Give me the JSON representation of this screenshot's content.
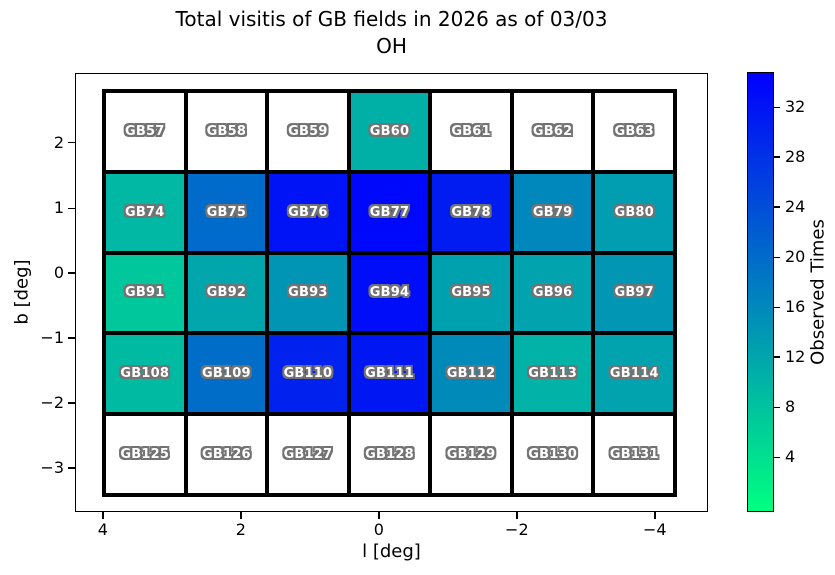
{
  "title": {
    "line1": "Total visitis of GB fields in 2026 as of 03/03",
    "line2": "OH"
  },
  "axes": {
    "xlabel": "l [deg]",
    "ylabel": "b [deg]",
    "x_ticks": [
      {
        "label": "4",
        "pos_pct": 4.4
      },
      {
        "label": "2",
        "pos_pct": 26.2
      },
      {
        "label": "0",
        "pos_pct": 48.0
      },
      {
        "label": "−2",
        "pos_pct": 69.8
      },
      {
        "label": "−4",
        "pos_pct": 91.6
      }
    ],
    "y_ticks": [
      {
        "label": "2",
        "pos_pct": 15.9
      },
      {
        "label": "1",
        "pos_pct": 30.8
      },
      {
        "label": "0",
        "pos_pct": 45.6
      },
      {
        "label": "−1",
        "pos_pct": 60.4
      },
      {
        "label": "−2",
        "pos_pct": 75.2
      },
      {
        "label": "−3",
        "pos_pct": 90.0
      }
    ]
  },
  "colorbar": {
    "label": "Observed Times",
    "top_color": "#0000ff",
    "bottom_color": "#00ff80",
    "ticks": [
      {
        "label": "32",
        "pos_pct": 8.0
      },
      {
        "label": "28",
        "pos_pct": 19.3
      },
      {
        "label": "24",
        "pos_pct": 30.7
      },
      {
        "label": "20",
        "pos_pct": 42.1
      },
      {
        "label": "16",
        "pos_pct": 53.5
      },
      {
        "label": "12",
        "pos_pct": 64.8
      },
      {
        "label": "8",
        "pos_pct": 76.2
      },
      {
        "label": "4",
        "pos_pct": 87.6
      }
    ]
  },
  "colors": {
    "cell_border": "#000000",
    "label_fill": "#ffffff",
    "label_outline": "#737373",
    "no_data_cell": "#ffffff"
  },
  "grid": {
    "rows": [
      {
        "cells": [
          {
            "label": "GB57",
            "value": null,
            "color": "#ffffff"
          },
          {
            "label": "GB58",
            "value": null,
            "color": "#ffffff"
          },
          {
            "label": "GB59",
            "value": null,
            "color": "#ffffff"
          },
          {
            "label": "GB60",
            "value": 11,
            "color": "#00b0a7"
          },
          {
            "label": "GB61",
            "value": null,
            "color": "#ffffff"
          },
          {
            "label": "GB62",
            "value": null,
            "color": "#ffffff"
          },
          {
            "label": "GB63",
            "value": null,
            "color": "#ffffff"
          }
        ]
      },
      {
        "cells": [
          {
            "label": "GB74",
            "value": 10,
            "color": "#00b8a4"
          },
          {
            "label": "GB75",
            "value": 20,
            "color": "#006bca"
          },
          {
            "label": "GB76",
            "value": 32,
            "color": "#0012f6"
          },
          {
            "label": "GB77",
            "value": 34,
            "color": "#0008fb"
          },
          {
            "label": "GB78",
            "value": 31,
            "color": "#001cf1"
          },
          {
            "label": "GB79",
            "value": 16,
            "color": "#0087bc"
          },
          {
            "label": "GB80",
            "value": 14,
            "color": "#009eb0"
          }
        ]
      },
      {
        "cells": [
          {
            "label": "GB91",
            "value": 8,
            "color": "#00c79c"
          },
          {
            "label": "GB92",
            "value": 12,
            "color": "#00a6ac"
          },
          {
            "label": "GB93",
            "value": 15,
            "color": "#0094b5"
          },
          {
            "label": "GB94",
            "value": 33,
            "color": "#000df9"
          },
          {
            "label": "GB95",
            "value": 13,
            "color": "#00a1af"
          },
          {
            "label": "GB96",
            "value": 13,
            "color": "#00a3ae"
          },
          {
            "label": "GB97",
            "value": 14,
            "color": "#0096b4"
          }
        ]
      },
      {
        "cells": [
          {
            "label": "GB108",
            "value": 10,
            "color": "#00baa2"
          },
          {
            "label": "GB109",
            "value": 20,
            "color": "#006ec8"
          },
          {
            "label": "GB110",
            "value": 30,
            "color": "#0021ee"
          },
          {
            "label": "GB111",
            "value": 32,
            "color": "#0017f4"
          },
          {
            "label": "GB112",
            "value": 16,
            "color": "#008aba"
          },
          {
            "label": "GB113",
            "value": 11,
            "color": "#00b3a6"
          },
          {
            "label": "GB114",
            "value": 13,
            "color": "#00a3ae"
          }
        ]
      },
      {
        "cells": [
          {
            "label": "GB125",
            "value": null,
            "color": "#ffffff"
          },
          {
            "label": "GB126",
            "value": null,
            "color": "#ffffff"
          },
          {
            "label": "GB127",
            "value": null,
            "color": "#ffffff"
          },
          {
            "label": "GB128",
            "value": null,
            "color": "#ffffff"
          },
          {
            "label": "GB129",
            "value": null,
            "color": "#ffffff"
          },
          {
            "label": "GB130",
            "value": null,
            "color": "#ffffff"
          },
          {
            "label": "GB131",
            "value": null,
            "color": "#ffffff"
          }
        ]
      }
    ]
  },
  "chart_data": {
    "type": "heatmap",
    "title": "Total visitis of GB fields in 2026 as of 03/03 / OH",
    "xlabel": "l [deg]",
    "ylabel": "b [deg]",
    "x_tick_labels": [
      4,
      2,
      0,
      -2,
      -4
    ],
    "y_tick_labels": [
      2,
      1,
      0,
      -1,
      -2,
      -3
    ],
    "x_axis_inverted": true,
    "colorbar_label": "Observed Times",
    "colorbar_ticks": [
      4,
      8,
      12,
      16,
      20,
      24,
      28,
      32
    ],
    "colormap": "winter_r (green = few visits, blue = many visits); white cells = no observations",
    "values_note": "observed-times values estimated from cell colors against the colorbar",
    "field_labels": [
      [
        "GB57",
        "GB58",
        "GB59",
        "GB60",
        "GB61",
        "GB62",
        "GB63"
      ],
      [
        "GB74",
        "GB75",
        "GB76",
        "GB77",
        "GB78",
        "GB79",
        "GB80"
      ],
      [
        "GB91",
        "GB92",
        "GB93",
        "GB94",
        "GB95",
        "GB96",
        "GB97"
      ],
      [
        "GB108",
        "GB109",
        "GB110",
        "GB111",
        "GB112",
        "GB113",
        "GB114"
      ],
      [
        "GB125",
        "GB126",
        "GB127",
        "GB128",
        "GB129",
        "GB130",
        "GB131"
      ]
    ],
    "observed_times": [
      [
        null,
        null,
        null,
        11,
        null,
        null,
        null
      ],
      [
        10,
        20,
        32,
        34,
        31,
        16,
        14
      ],
      [
        8,
        12,
        15,
        33,
        13,
        13,
        14
      ],
      [
        10,
        20,
        30,
        32,
        16,
        11,
        13
      ],
      [
        null,
        null,
        null,
        null,
        null,
        null,
        null
      ]
    ]
  }
}
